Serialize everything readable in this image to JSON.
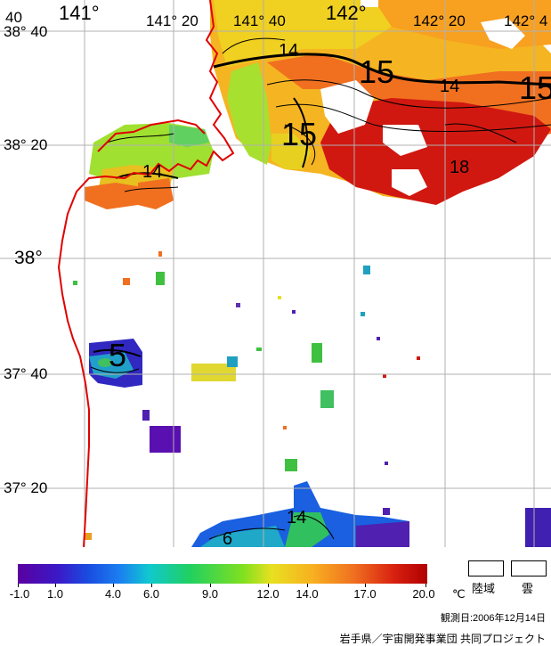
{
  "map": {
    "lon_labels": [
      "40",
      "141°",
      "141° 20",
      "141° 40",
      "142°",
      "142° 20",
      "142° 4"
    ],
    "lat_labels": [
      "38° 40",
      "38° 20",
      "38°",
      "37° 40",
      "37° 20"
    ],
    "contour_labels": [
      "14",
      "15",
      "14",
      "15",
      "15",
      "14",
      "18",
      "5",
      "14",
      "6"
    ]
  },
  "legend": {
    "ticks": [
      "-1.0",
      "1.0",
      "4.0",
      "6.0",
      "9.0",
      "12.0",
      "14.0",
      "17.0",
      "20.0"
    ],
    "unit": "℃",
    "land_label": "陸域",
    "cloud_label": "雲"
  },
  "footer": {
    "observation_date": "観測日:2006年12月14日",
    "credit": "岩手県／宇宙開発事業団 共同プロジェクト"
  },
  "colors": {
    "coastline": "#e00000",
    "grid": "#b0b0b0",
    "warm": "#c81010",
    "cold": "#4010b0"
  }
}
